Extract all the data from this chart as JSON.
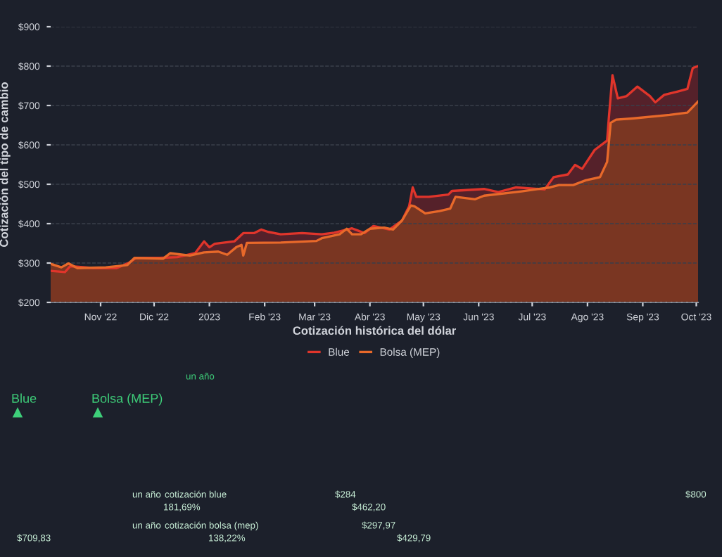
{
  "chart_data": {
    "type": "area",
    "xlabel": "Cotización histórica del dólar",
    "ylabel": "Cotización del tipo de cambio",
    "xlim": [
      "2022-10-04",
      "2023-10-02"
    ],
    "xticks": [
      {
        "value": "2022-11-01",
        "label": "Nov '22"
      },
      {
        "value": "2022-12-01",
        "label": "Dic '22"
      },
      {
        "value": "2023-01-01",
        "label": "2023"
      },
      {
        "value": "2023-02-01",
        "label": "Feb '23"
      },
      {
        "value": "2023-03-01",
        "label": "Mar '23"
      },
      {
        "value": "2023-04-01",
        "label": "Abr '23"
      },
      {
        "value": "2023-05-01",
        "label": "May '23"
      },
      {
        "value": "2023-06-01",
        "label": "Jun '23"
      },
      {
        "value": "2023-07-01",
        "label": "Jul '23"
      },
      {
        "value": "2023-08-01",
        "label": "Ago '23"
      },
      {
        "value": "2023-09-01",
        "label": "Sep '23"
      },
      {
        "value": "2023-10-01",
        "label": "Oct '23"
      }
    ],
    "ylim": [
      200,
      900
    ],
    "yticks": [
      {
        "value": 200,
        "label": "$200"
      },
      {
        "value": 300,
        "label": "$300"
      },
      {
        "value": 400,
        "label": "$400"
      },
      {
        "value": 500,
        "label": "$500"
      },
      {
        "value": 600,
        "label": "$600"
      },
      {
        "value": 700,
        "label": "$700"
      },
      {
        "value": 800,
        "label": "$800"
      },
      {
        "value": 900,
        "label": "$900"
      }
    ],
    "grid": "y",
    "legend": "bottom",
    "marker": "none",
    "line_style": "solid",
    "series": [
      {
        "name": "Blue",
        "color": "#e0352b",
        "x": [
          "2022-10-04",
          "2022-10-12",
          "2022-10-15",
          "2022-10-28",
          "2022-11-10",
          "2022-11-17",
          "2022-11-21",
          "2022-12-04",
          "2022-12-14",
          "2022-12-24",
          "2022-12-29",
          "2023-01-01",
          "2023-01-04",
          "2023-01-15",
          "2023-01-20",
          "2023-01-26",
          "2023-01-30",
          "2023-02-03",
          "2023-02-10",
          "2023-02-22",
          "2023-03-05",
          "2023-03-12",
          "2023-03-22",
          "2023-03-29",
          "2023-04-03",
          "2023-04-12",
          "2023-04-19",
          "2023-04-23",
          "2023-04-25",
          "2023-04-27",
          "2023-05-04",
          "2023-05-15",
          "2023-05-17",
          "2023-06-04",
          "2023-06-12",
          "2023-06-22",
          "2023-07-08",
          "2023-07-13",
          "2023-07-21",
          "2023-07-25",
          "2023-07-29",
          "2023-08-05",
          "2023-08-12",
          "2023-08-13",
          "2023-08-15",
          "2023-08-18",
          "2023-08-23",
          "2023-08-29",
          "2023-09-05",
          "2023-09-08",
          "2023-09-13",
          "2023-09-21",
          "2023-09-26",
          "2023-09-29",
          "2023-10-02"
        ],
        "values": [
          280,
          277,
          292,
          287,
          287,
          301,
          313,
          313,
          315,
          325,
          355,
          340,
          349,
          355,
          376,
          376,
          385,
          379,
          373,
          376,
          373,
          377,
          388,
          376,
          394,
          385,
          408,
          444,
          492,
          468,
          468,
          474,
          483,
          488,
          480,
          492,
          487,
          518,
          525,
          549,
          539,
          587,
          611,
          670,
          777,
          718,
          724,
          748,
          724,
          708,
          727,
          736,
          742,
          795,
          800
        ]
      },
      {
        "name": "Bolsa (MEP)",
        "color": "#e8692a",
        "x": [
          "2022-10-04",
          "2022-10-10",
          "2022-10-14",
          "2022-10-19",
          "2022-11-04",
          "2022-11-16",
          "2022-11-20",
          "2022-12-06",
          "2022-12-10",
          "2022-12-21",
          "2022-12-29",
          "2023-01-06",
          "2023-01-11",
          "2023-01-16",
          "2023-01-19",
          "2023-01-20",
          "2023-01-22",
          "2023-02-10",
          "2023-03-02",
          "2023-03-05",
          "2023-03-15",
          "2023-03-19",
          "2023-03-22",
          "2023-03-27",
          "2023-04-01",
          "2023-04-09",
          "2023-04-14",
          "2023-04-19",
          "2023-04-24",
          "2023-04-26",
          "2023-05-02",
          "2023-05-10",
          "2023-05-16",
          "2023-05-19",
          "2023-05-30",
          "2023-06-04",
          "2023-06-25",
          "2023-07-11",
          "2023-07-16",
          "2023-07-24",
          "2023-07-31",
          "2023-08-08",
          "2023-08-12",
          "2023-08-14",
          "2023-08-17",
          "2023-08-26",
          "2023-09-16",
          "2023-09-26",
          "2023-10-02"
        ],
        "values": [
          298,
          289,
          299,
          287,
          289,
          295,
          313,
          311,
          325,
          319,
          327,
          329,
          321,
          340,
          346,
          319,
          351,
          352,
          356,
          363,
          373,
          387,
          373,
          373,
          387,
          390,
          385,
          408,
          446,
          444,
          426,
          432,
          438,
          468,
          462,
          471,
          482,
          492,
          498,
          498,
          510,
          518,
          557,
          656,
          664,
          667,
          676,
          682,
          710
        ]
      }
    ],
    "annotations": [
      "un año",
      "Blue",
      "Bolsa (MEP)",
      "un año",
      "cotización blue",
      "$284",
      "$800",
      "181,69%",
      "$462,20",
      "un año",
      "cotización bolsa (mep)",
      "$297,97",
      "$709,83",
      "138,22%",
      "$429,79"
    ]
  }
}
